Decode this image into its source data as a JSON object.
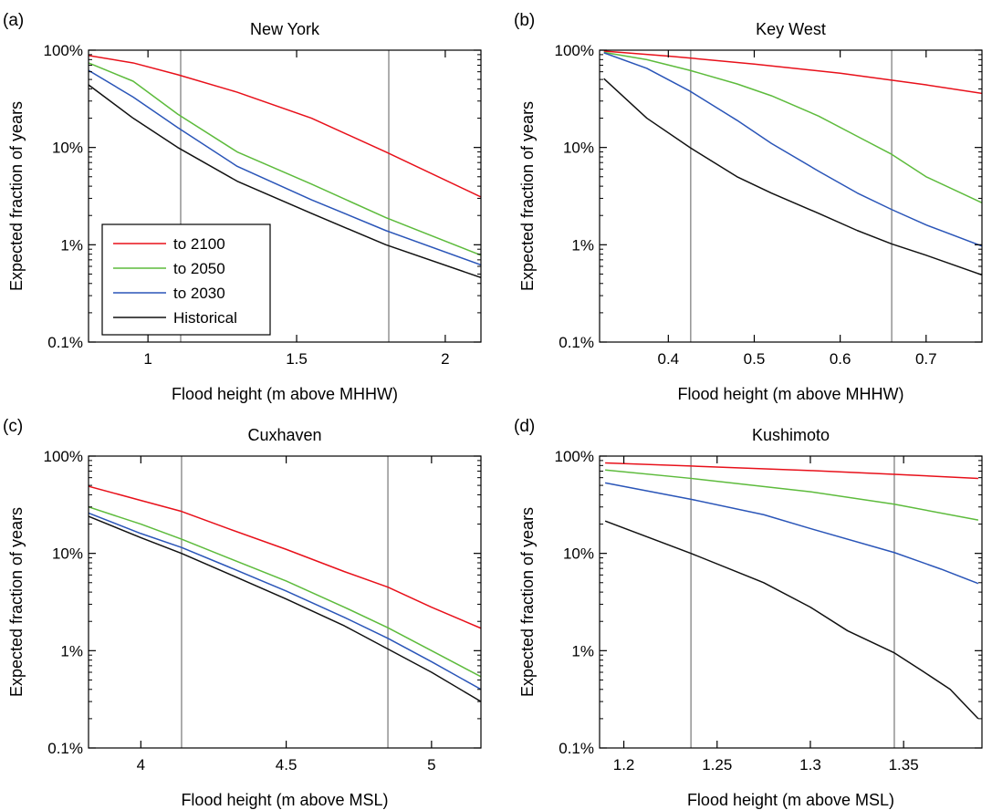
{
  "figure": {
    "panels": [
      {
        "letter": "(a)",
        "title": "New York",
        "xlabel": "Flood height (m above MHHW)",
        "ylabel": "Expected fraction of years"
      },
      {
        "letter": "(b)",
        "title": "Key West",
        "xlabel": "Flood height (m above MHHW)",
        "ylabel": "Expected fraction of years"
      },
      {
        "letter": "(c)",
        "title": "Cuxhaven",
        "xlabel": "Flood height (m above MSL)",
        "ylabel": "Expected fraction of years"
      },
      {
        "letter": "(d)",
        "title": "Kushimoto",
        "xlabel": "Flood height (m above MSL)",
        "ylabel": "Expected fraction of years"
      }
    ],
    "legend": {
      "location": "lower-left of panel (a)",
      "entries": [
        "to 2100",
        "to 2050",
        "to 2030",
        "Historical"
      ]
    },
    "colors": {
      "to 2100": "#e8101a",
      "to 2050": "#5dbb3c",
      "to 2030": "#2a55b8",
      "Historical": "#111111",
      "reference_line": "#999999"
    }
  },
  "chart_data": [
    {
      "type": "line",
      "title": "New York",
      "xlabel": "Flood height (m above MHHW)",
      "ylabel": "Expected fraction of years",
      "xlim": [
        0.8,
        2.12
      ],
      "ylim": [
        0.001,
        1
      ],
      "yscale": "log",
      "xticks": [
        1,
        1.5,
        2
      ],
      "xtick_labels": [
        "1",
        "1.5",
        "2"
      ],
      "yticks": [
        0.001,
        0.01,
        0.1,
        1
      ],
      "ytick_labels": [
        "0.1%",
        "1%",
        "10%",
        "100%"
      ],
      "grid": false,
      "reference_lines_x": [
        1.11,
        1.81
      ],
      "series": [
        {
          "name": "to 2100",
          "x": [
            0.8,
            0.95,
            1.1,
            1.3,
            1.55,
            1.8,
            2.12
          ],
          "values": [
            0.88,
            0.74,
            0.56,
            0.37,
            0.2,
            0.09,
            0.031
          ]
        },
        {
          "name": "to 2050",
          "x": [
            0.8,
            0.95,
            1.1,
            1.3,
            1.55,
            1.8,
            2.12
          ],
          "values": [
            0.74,
            0.48,
            0.22,
            0.09,
            0.042,
            0.019,
            0.0078
          ]
        },
        {
          "name": "to 2030",
          "x": [
            0.8,
            0.95,
            1.1,
            1.3,
            1.55,
            1.8,
            2.12
          ],
          "values": [
            0.62,
            0.33,
            0.16,
            0.064,
            0.029,
            0.014,
            0.0062
          ]
        },
        {
          "name": "Historical",
          "x": [
            0.8,
            0.95,
            1.1,
            1.3,
            1.55,
            1.8,
            2.12
          ],
          "values": [
            0.44,
            0.2,
            0.1,
            0.045,
            0.021,
            0.01,
            0.0046
          ]
        }
      ]
    },
    {
      "type": "line",
      "title": "Key West",
      "xlabel": "Flood height (m above MHHW)",
      "ylabel": "Expected fraction of years",
      "xlim": [
        0.32,
        0.765
      ],
      "ylim": [
        0.001,
        1
      ],
      "yscale": "log",
      "xticks": [
        0.4,
        0.5,
        0.6,
        0.7
      ],
      "xtick_labels": [
        "0.4",
        "0.5",
        "0.6",
        "0.7"
      ],
      "yticks": [
        0.001,
        0.01,
        0.1,
        1
      ],
      "ytick_labels": [
        "0.1%",
        "1%",
        "10%",
        "100%"
      ],
      "grid": false,
      "reference_lines_x": [
        0.426,
        0.66
      ],
      "series": [
        {
          "name": "to 2100",
          "x": [
            0.325,
            0.4,
            0.5,
            0.6,
            0.7,
            0.765
          ],
          "values": [
            0.98,
            0.87,
            0.72,
            0.58,
            0.44,
            0.36
          ]
        },
        {
          "name": "to 2050",
          "x": [
            0.325,
            0.375,
            0.425,
            0.48,
            0.52,
            0.575,
            0.62,
            0.66,
            0.7,
            0.765
          ],
          "values": [
            0.95,
            0.8,
            0.62,
            0.45,
            0.34,
            0.21,
            0.13,
            0.085,
            0.05,
            0.027
          ]
        },
        {
          "name": "to 2030",
          "x": [
            0.325,
            0.375,
            0.425,
            0.48,
            0.52,
            0.575,
            0.62,
            0.66,
            0.7,
            0.765
          ],
          "values": [
            0.94,
            0.65,
            0.38,
            0.19,
            0.11,
            0.057,
            0.034,
            0.023,
            0.016,
            0.0097
          ]
        },
        {
          "name": "Historical",
          "x": [
            0.325,
            0.375,
            0.425,
            0.48,
            0.52,
            0.575,
            0.62,
            0.66,
            0.7,
            0.765
          ],
          "values": [
            0.51,
            0.2,
            0.1,
            0.05,
            0.034,
            0.021,
            0.014,
            0.0102,
            0.0078,
            0.0049
          ]
        }
      ]
    },
    {
      "type": "line",
      "title": "Cuxhaven",
      "xlabel": "Flood height (m above MSL)",
      "ylabel": "Expected fraction of years",
      "xlim": [
        3.82,
        5.17
      ],
      "ylim": [
        0.001,
        1
      ],
      "yscale": "log",
      "xticks": [
        4,
        4.5,
        5
      ],
      "xtick_labels": [
        "4",
        "4.5",
        "5"
      ],
      "yticks": [
        0.001,
        0.01,
        0.1,
        1
      ],
      "ytick_labels": [
        "0.1%",
        "1%",
        "10%",
        "100%"
      ],
      "grid": false,
      "reference_lines_x": [
        4.14,
        4.85
      ],
      "series": [
        {
          "name": "to 2100",
          "x": [
            3.82,
            4.0,
            4.14,
            4.3,
            4.5,
            4.7,
            4.85,
            5.0,
            5.17
          ],
          "values": [
            0.49,
            0.35,
            0.27,
            0.18,
            0.11,
            0.065,
            0.045,
            0.028,
            0.017
          ]
        },
        {
          "name": "to 2050",
          "x": [
            3.82,
            4.0,
            4.14,
            4.3,
            4.5,
            4.7,
            4.85,
            5.0,
            5.17
          ],
          "values": [
            0.3,
            0.2,
            0.14,
            0.09,
            0.052,
            0.028,
            0.0172,
            0.01,
            0.0054
          ]
        },
        {
          "name": "to 2030",
          "x": [
            3.82,
            4.0,
            4.14,
            4.3,
            4.5,
            4.7,
            4.85,
            5.0,
            5.17
          ],
          "values": [
            0.26,
            0.16,
            0.115,
            0.073,
            0.041,
            0.022,
            0.0134,
            0.0077,
            0.004
          ]
        },
        {
          "name": "Historical",
          "x": [
            3.82,
            4.0,
            4.14,
            4.3,
            4.5,
            4.7,
            4.85,
            5.0,
            5.17
          ],
          "values": [
            0.24,
            0.145,
            0.1,
            0.062,
            0.034,
            0.018,
            0.0104,
            0.006,
            0.003
          ]
        }
      ]
    },
    {
      "type": "line",
      "title": "Kushimoto",
      "xlabel": "Flood height (m above MSL)",
      "ylabel": "Expected fraction of years",
      "xlim": [
        1.187,
        1.392
      ],
      "ylim": [
        0.001,
        1
      ],
      "yscale": "log",
      "xticks": [
        1.2,
        1.25,
        1.3,
        1.35
      ],
      "xtick_labels": [
        "1.2",
        "1.25",
        "1.3",
        "1.35"
      ],
      "yticks": [
        0.001,
        0.01,
        0.1,
        1
      ],
      "ytick_labels": [
        "0.1%",
        "1%",
        "10%",
        "100%"
      ],
      "grid": false,
      "reference_lines_x": [
        1.236,
        1.345
      ],
      "series": [
        {
          "name": "to 2100",
          "x": [
            1.19,
            1.236,
            1.3,
            1.345,
            1.39
          ],
          "values": [
            0.85,
            0.79,
            0.71,
            0.65,
            0.59
          ]
        },
        {
          "name": "to 2050",
          "x": [
            1.19,
            1.236,
            1.3,
            1.345,
            1.39
          ],
          "values": [
            0.72,
            0.59,
            0.43,
            0.32,
            0.22
          ]
        },
        {
          "name": "to 2030",
          "x": [
            1.19,
            1.236,
            1.275,
            1.3,
            1.345,
            1.37,
            1.39
          ],
          "values": [
            0.53,
            0.36,
            0.25,
            0.18,
            0.102,
            0.069,
            0.049
          ]
        },
        {
          "name": "Historical",
          "x": [
            1.19,
            1.236,
            1.275,
            1.3,
            1.32,
            1.345,
            1.36,
            1.375,
            1.39
          ],
          "values": [
            0.215,
            0.1,
            0.05,
            0.028,
            0.016,
            0.0095,
            0.0062,
            0.004,
            0.002
          ]
        }
      ]
    }
  ]
}
